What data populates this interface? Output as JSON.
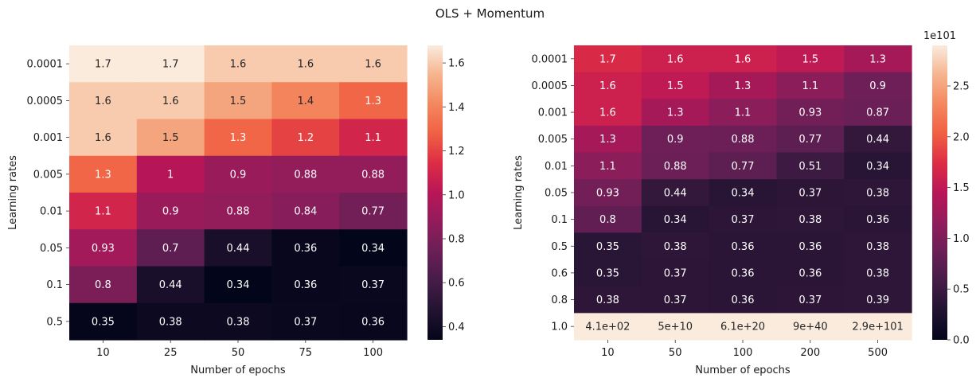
{
  "figure": {
    "suptitle": "OLS + Momentum"
  },
  "chart_data": [
    {
      "type": "heatmap",
      "title": "",
      "xlabel": "Number of epochs",
      "ylabel": "Learning rates",
      "x": [
        "10",
        "25",
        "50",
        "75",
        "100"
      ],
      "y": [
        "0.0001",
        "0.0005",
        "0.001",
        "0.005",
        "0.01",
        "0.05",
        "0.1",
        "0.5"
      ],
      "values": [
        [
          1.7,
          1.7,
          1.6,
          1.6,
          1.6
        ],
        [
          1.6,
          1.6,
          1.5,
          1.4,
          1.3
        ],
        [
          1.6,
          1.5,
          1.3,
          1.2,
          1.1
        ],
        [
          1.3,
          1.0,
          0.9,
          0.88,
          0.88
        ],
        [
          1.1,
          0.9,
          0.88,
          0.84,
          0.77
        ],
        [
          0.93,
          0.7,
          0.44,
          0.36,
          0.34
        ],
        [
          0.8,
          0.44,
          0.34,
          0.36,
          0.37
        ],
        [
          0.35,
          0.38,
          0.38,
          0.37,
          0.36
        ]
      ],
      "annotations": [
        [
          "1.7",
          "1.7",
          "1.6",
          "1.6",
          "1.6"
        ],
        [
          "1.6",
          "1.6",
          "1.5",
          "1.4",
          "1.3"
        ],
        [
          "1.6",
          "1.5",
          "1.3",
          "1.2",
          "1.1"
        ],
        [
          "1.3",
          "1",
          "0.9",
          "0.88",
          "0.88"
        ],
        [
          "1.1",
          "0.9",
          "0.88",
          "0.84",
          "0.77"
        ],
        [
          "0.93",
          "0.7",
          "0.44",
          "0.36",
          "0.34"
        ],
        [
          "0.8",
          "0.44",
          "0.34",
          "0.36",
          "0.37"
        ],
        [
          "0.35",
          "0.38",
          "0.38",
          "0.37",
          "0.36"
        ]
      ],
      "colorbar": {
        "vmin": 0.34,
        "vmax": 1.68,
        "ticks": [
          0.4,
          0.6,
          0.8,
          1.0,
          1.2,
          1.4,
          1.6
        ],
        "tick_labels": [
          "0.4",
          "0.6",
          "0.8",
          "1.0",
          "1.2",
          "1.4",
          "1.6"
        ],
        "offset_label": ""
      },
      "colormap": "rocket"
    },
    {
      "type": "heatmap",
      "title": "",
      "xlabel": "Number of epochs",
      "ylabel": "Learning rates",
      "x": [
        "10",
        "50",
        "100",
        "200",
        "500"
      ],
      "y": [
        "0.0001",
        "0.0005",
        "0.001",
        "0.005",
        "0.01",
        "0.05",
        "0.1",
        "0.5",
        "0.6",
        "0.8",
        "1.0"
      ],
      "values": [
        [
          1.7,
          1.6,
          1.6,
          1.5,
          1.3
        ],
        [
          1.6,
          1.5,
          1.3,
          1.1,
          0.9
        ],
        [
          1.6,
          1.3,
          1.1,
          0.93,
          0.87
        ],
        [
          1.3,
          0.9,
          0.88,
          0.77,
          0.44
        ],
        [
          1.1,
          0.88,
          0.77,
          0.51,
          0.34
        ],
        [
          0.93,
          0.44,
          0.34,
          0.37,
          0.38
        ],
        [
          0.8,
          0.34,
          0.37,
          0.38,
          0.36
        ],
        [
          0.35,
          0.38,
          0.36,
          0.36,
          0.38
        ],
        [
          0.35,
          0.37,
          0.36,
          0.36,
          0.38
        ],
        [
          0.38,
          0.37,
          0.36,
          0.37,
          0.39
        ],
        [
          410,
          50000000000.0,
          6.1e+20,
          9e+40,
          2.9e+101
        ]
      ],
      "annotations": [
        [
          "1.7",
          "1.6",
          "1.6",
          "1.5",
          "1.3"
        ],
        [
          "1.6",
          "1.5",
          "1.3",
          "1.1",
          "0.9"
        ],
        [
          "1.6",
          "1.3",
          "1.1",
          "0.93",
          "0.87"
        ],
        [
          "1.3",
          "0.9",
          "0.88",
          "0.77",
          "0.44"
        ],
        [
          "1.1",
          "0.88",
          "0.77",
          "0.51",
          "0.34"
        ],
        [
          "0.93",
          "0.44",
          "0.34",
          "0.37",
          "0.38"
        ],
        [
          "0.8",
          "0.34",
          "0.37",
          "0.38",
          "0.36"
        ],
        [
          "0.35",
          "0.38",
          "0.36",
          "0.36",
          "0.38"
        ],
        [
          "0.35",
          "0.37",
          "0.36",
          "0.36",
          "0.38"
        ],
        [
          "0.38",
          "0.37",
          "0.36",
          "0.37",
          "0.39"
        ],
        [
          "4.1e+02",
          "5e+10",
          "6.1e+20",
          "9e+40",
          "2.9e+101"
        ]
      ],
      "colorbar": {
        "vmin": 0,
        "vmax": 2.9,
        "ticks": [
          0.0,
          0.5,
          1.0,
          1.5,
          2.0,
          2.5
        ],
        "tick_labels": [
          "0.0",
          "0.5",
          "1.0",
          "1.5",
          "2.0",
          "2.5"
        ],
        "offset_label": "1e101"
      },
      "colormap": "rocket"
    }
  ]
}
